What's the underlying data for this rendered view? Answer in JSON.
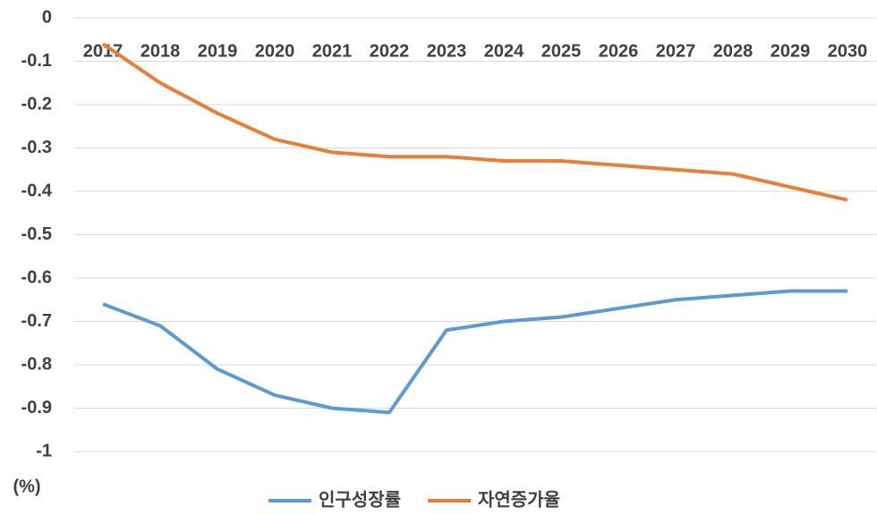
{
  "chart_data": {
    "type": "line",
    "y_label": "(%)",
    "categories": [
      "2017",
      "2018",
      "2019",
      "2020",
      "2021",
      "2022",
      "2023",
      "2024",
      "2025",
      "2026",
      "2027",
      "2028",
      "2029",
      "2030"
    ],
    "series": [
      {
        "name": "인구성장률",
        "color": "#5b9bd5",
        "values": [
          -0.66,
          -0.71,
          -0.81,
          -0.87,
          -0.9,
          -0.91,
          -0.72,
          -0.7,
          -0.69,
          -0.67,
          -0.65,
          -0.64,
          -0.63,
          -0.63
        ]
      },
      {
        "name": "자연증가율",
        "color": "#ed7d31",
        "values": [
          -0.06,
          -0.15,
          -0.22,
          -0.28,
          -0.31,
          -0.32,
          -0.32,
          -0.33,
          -0.33,
          -0.34,
          -0.35,
          -0.36,
          -0.39,
          -0.42
        ]
      }
    ],
    "ylim": [
      -1,
      0
    ],
    "yticks": [
      0,
      -0.1,
      -0.2,
      -0.3,
      -0.4,
      -0.5,
      -0.6,
      -0.7,
      -0.8,
      -0.9,
      -1
    ],
    "grid": true,
    "legend": "bottom"
  }
}
